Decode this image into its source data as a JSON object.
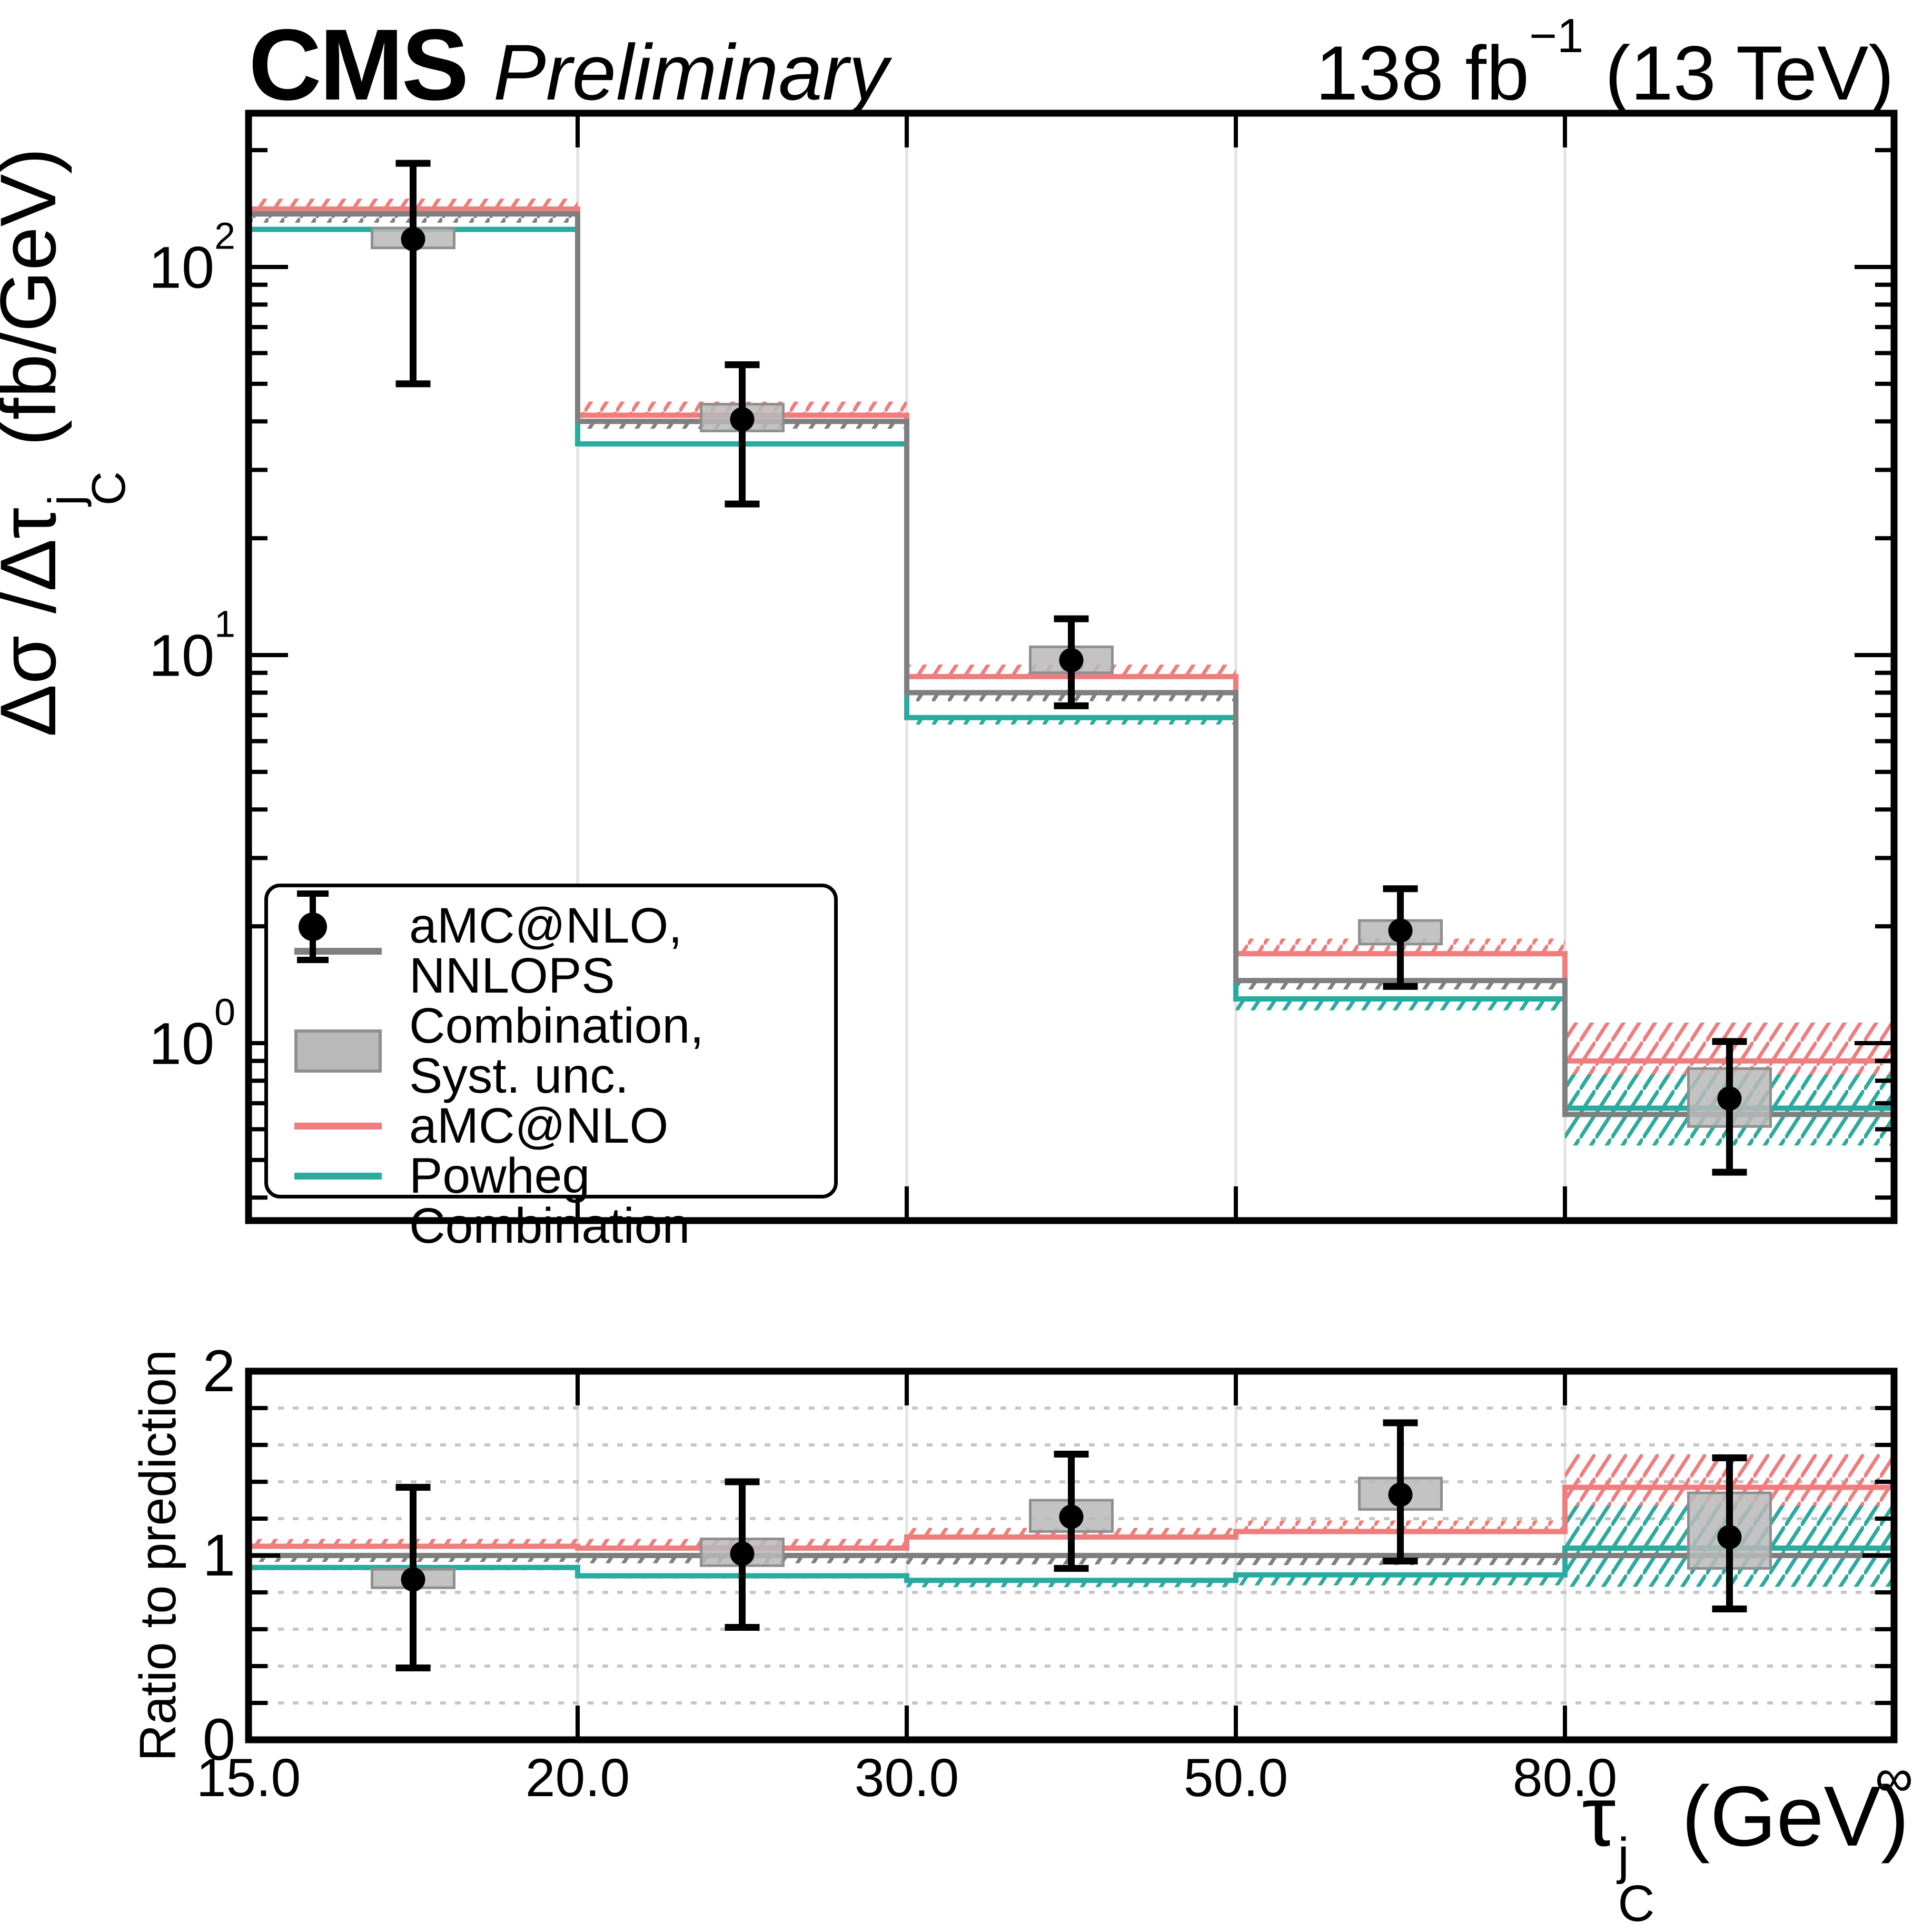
{
  "header": {
    "experiment": "CMS",
    "label": "Preliminary",
    "lumi_prefix": "138 fb",
    "lumi_sup": "−1",
    "lumi_suffix": " (13 TeV)"
  },
  "axes": {
    "main_y_label_prefix": "Δσ /Δτ",
    "main_y_label_sup": "j",
    "main_y_label_sub": "C",
    "main_y_label_suffix": " (fb/GeV)",
    "ratio_y_label": "Ratio to prediction",
    "x_label_tau": "τ",
    "x_label_sup": "j",
    "x_label_sub": "C",
    "x_label_suffix": " (GeV)",
    "x_tick_labels": [
      "15.0",
      "20.0",
      "30.0",
      "50.0",
      "80.0",
      "∞"
    ],
    "main_y_ticks": [
      {
        "base": "10",
        "exp": "2",
        "value": 100
      },
      {
        "base": "10",
        "exp": "1",
        "value": 10
      },
      {
        "base": "10",
        "exp": "0",
        "value": 1
      }
    ],
    "ratio_y_ticks": [
      {
        "label": "2",
        "value": 2
      },
      {
        "label": "1",
        "value": 1
      },
      {
        "label": "0",
        "value": 0
      }
    ]
  },
  "legend": {
    "items": [
      {
        "label": "aMC@NLO, NNLOPS",
        "type": "line",
        "color": "#7f7f7f"
      },
      {
        "label": "Combination, Syst. unc.",
        "type": "box",
        "color": "#b9b9b9"
      },
      {
        "label": "aMC@NLO",
        "type": "line",
        "color": "#ee7d7d"
      },
      {
        "label": "Powheg",
        "type": "line",
        "color": "#2aab9f"
      },
      {
        "label": "Combination",
        "type": "marker",
        "color": "#000000"
      }
    ]
  },
  "style": {
    "nnlops_color": "#7f7f7f",
    "amcnlo_color": "#ee7d7d",
    "powheg_color": "#2aab9f",
    "data_color": "#000000",
    "syst_box_fill": "#b9b9b9",
    "syst_box_edge": "#8f8f8f",
    "grid_color": "#e2e2e2",
    "dotted_grid_color": "#c6c6c6",
    "frame_color": "#000000"
  },
  "chart_data": {
    "type": "step-histogram with data points and ratio panel",
    "title": "CMS Preliminary, 138 fb−1 (13 TeV)",
    "xlabel": "τ_C^j (GeV)",
    "x_bin_edge_labels": [
      "15.0",
      "20.0",
      "30.0",
      "50.0",
      "80.0",
      "∞"
    ],
    "x_bin_edges_gev": [
      15,
      20,
      30,
      50,
      80,
      null
    ],
    "x_bins_equal_display_width": true,
    "main_panel": {
      "ylabel": "Δσ/Δτ_C^j (fb/GeV)",
      "yscale": "log",
      "ylim": [
        0.341,
        249
      ],
      "series": [
        {
          "name": "aMC@NLO, NNLOPS",
          "color": "#7f7f7f",
          "values": [
            137,
            40,
            8.0,
            1.45,
            0.655
          ],
          "band_lo": [
            130,
            38.3,
            7.6,
            1.375,
            0.545
          ],
          "band_hi": [
            138.5,
            40.3,
            8.06,
            1.462,
            0.83
          ]
        },
        {
          "name": "aMC@NLO",
          "color": "#ee7d7d",
          "values": [
            141,
            41.5,
            8.8,
            1.7,
            0.9
          ],
          "band_lo": [
            140,
            41.2,
            8.7,
            1.69,
            0.77
          ],
          "band_hi": [
            150,
            45,
            9.45,
            1.86,
            1.13
          ]
        },
        {
          "name": "Powheg",
          "color": "#2aab9f",
          "values": [
            125,
            35,
            6.9,
            1.3,
            0.68
          ],
          "band_lo": [
            124,
            34.5,
            6.62,
            1.215,
            0.545
          ],
          "band_hi": [
            126.5,
            35.4,
            6.98,
            1.32,
            0.83
          ]
        }
      ],
      "measurement": {
        "name": "Combination",
        "values": [
          118,
          40.5,
          9.7,
          1.95,
          0.72
        ],
        "err_lo": [
          50,
          24.5,
          7.4,
          1.4,
          0.465
        ],
        "err_hi": [
          185,
          56,
          12.4,
          2.5,
          1.01
        ],
        "syst_lo": [
          112,
          37.8,
          9.0,
          1.8,
          0.61
        ],
        "syst_hi": [
          126,
          44.3,
          10.5,
          2.07,
          0.86
        ]
      }
    },
    "ratio_panel": {
      "ylabel": "Ratio to prediction",
      "denominator": "aMC@NLO, NNLOPS",
      "yscale": "linear",
      "ylim": [
        0,
        2
      ],
      "grid_step": 0.2,
      "series": [
        {
          "name": "aMC@NLO, NNLOPS",
          "color": "#7f7f7f",
          "values": [
            1,
            1,
            1,
            1,
            1
          ],
          "band_lo": [
            0.965,
            0.958,
            0.952,
            0.948,
            0.83
          ],
          "band_hi": [
            1.006,
            1.006,
            1.006,
            1.006,
            1.27
          ]
        },
        {
          "name": "aMC@NLO",
          "color": "#ee7d7d",
          "values": [
            1.05,
            1.04,
            1.1,
            1.13,
            1.37
          ],
          "band_lo": [
            1.036,
            1.028,
            1.088,
            1.116,
            1.2
          ],
          "band_hi": [
            1.09,
            1.09,
            1.15,
            1.19,
            1.55
          ]
        },
        {
          "name": "Powheg",
          "color": "#2aab9f",
          "values": [
            0.935,
            0.89,
            0.865,
            0.895,
            1.04
          ],
          "band_lo": [
            0.92,
            0.875,
            0.828,
            0.838,
            0.83
          ],
          "band_hi": [
            0.945,
            0.9,
            0.876,
            0.906,
            1.27
          ]
        }
      ],
      "measurement": {
        "name": "Combination",
        "values": [
          0.87,
          1.01,
          1.21,
          1.33,
          1.1
        ],
        "err_lo": [
          0.39,
          0.61,
          0.93,
          0.97,
          0.71
        ],
        "err_hi": [
          1.37,
          1.4,
          1.55,
          1.72,
          1.53
        ],
        "box_lo": [
          0.825,
          0.945,
          1.13,
          1.25,
          0.93
        ],
        "box_hi": [
          0.925,
          1.09,
          1.3,
          1.42,
          1.34
        ]
      }
    }
  }
}
